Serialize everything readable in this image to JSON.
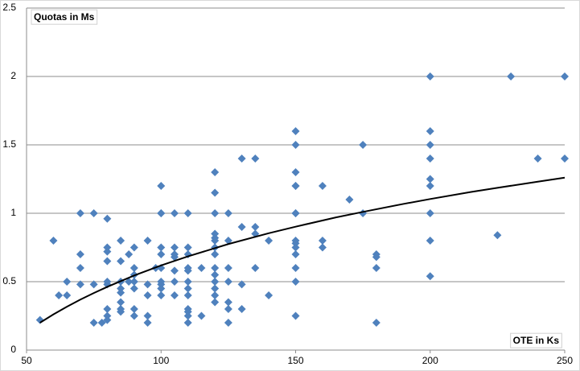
{
  "chart_data": {
    "type": "scatter",
    "ylabel": "Quotas in Ms",
    "xlabel": "OTE in Ks",
    "xlim": [
      50,
      250
    ],
    "xticks": [
      50,
      100,
      150,
      200,
      250
    ],
    "ylim": [
      0,
      2.5
    ],
    "yticks": [
      0,
      0.5,
      1,
      1.5,
      2,
      2.5
    ],
    "grid": true,
    "series": [
      {
        "color": "#4f81bd",
        "x": [
          55,
          60,
          62,
          65,
          65,
          70,
          70,
          70,
          70,
          75,
          75,
          75,
          78,
          80,
          80,
          80,
          80,
          80,
          80,
          80,
          80,
          80,
          85,
          85,
          85,
          85,
          85,
          85,
          85,
          85,
          88,
          88,
          90,
          90,
          90,
          90,
          90,
          90,
          90,
          95,
          95,
          95,
          95,
          95,
          98,
          100,
          100,
          100,
          100,
          100,
          100,
          100,
          100,
          100,
          100,
          105,
          105,
          105,
          105,
          105,
          105,
          105,
          110,
          110,
          110,
          110,
          110,
          110,
          110,
          110,
          110,
          110,
          110,
          110,
          115,
          115,
          120,
          120,
          120,
          120,
          120,
          120,
          120,
          120,
          120,
          120,
          120,
          120,
          120,
          120,
          125,
          125,
          125,
          125,
          125,
          125,
          125,
          130,
          130,
          130,
          130,
          135,
          135,
          135,
          135,
          140,
          140,
          150,
          150,
          150,
          150,
          150,
          150,
          150,
          150,
          150,
          150,
          150,
          150,
          150,
          150,
          160,
          160,
          160,
          170,
          175,
          175,
          180,
          180,
          180,
          180,
          200,
          200,
          200,
          200,
          200,
          200,
          200,
          200,
          200,
          225,
          230,
          240,
          250,
          250
        ],
        "values": [
          0.22,
          0.8,
          0.4,
          0.5,
          0.4,
          1.0,
          0.7,
          0.6,
          0.48,
          1.0,
          0.48,
          0.2,
          0.2,
          0.96,
          0.75,
          0.72,
          0.65,
          0.5,
          0.48,
          0.3,
          0.25,
          0.22,
          0.8,
          0.65,
          0.5,
          0.45,
          0.42,
          0.35,
          0.3,
          0.28,
          0.7,
          0.5,
          0.75,
          0.6,
          0.55,
          0.5,
          0.45,
          0.3,
          0.25,
          0.8,
          0.48,
          0.4,
          0.25,
          0.2,
          0.6,
          1.2,
          1.0,
          1.0,
          0.75,
          0.7,
          0.6,
          0.5,
          0.48,
          0.45,
          0.4,
          1.0,
          0.75,
          0.7,
          0.68,
          0.58,
          0.5,
          0.4,
          1.0,
          0.75,
          0.7,
          0.6,
          0.58,
          0.5,
          0.45,
          0.4,
          0.3,
          0.28,
          0.25,
          0.2,
          0.6,
          0.25,
          1.3,
          1.15,
          1.0,
          0.85,
          0.82,
          0.8,
          0.75,
          0.7,
          0.6,
          0.55,
          0.5,
          0.45,
          0.4,
          0.35,
          1.0,
          0.8,
          0.6,
          0.5,
          0.35,
          0.3,
          0.2,
          1.4,
          0.9,
          0.48,
          0.3,
          1.4,
          0.9,
          0.85,
          0.6,
          0.8,
          0.4,
          1.6,
          1.5,
          1.3,
          1.2,
          1.2,
          1.0,
          1.0,
          0.8,
          0.78,
          0.75,
          0.7,
          0.6,
          0.5,
          0.25,
          1.2,
          0.8,
          0.75,
          1.1,
          1.5,
          1.0,
          0.7,
          0.68,
          0.6,
          0.2,
          2.0,
          1.6,
          1.5,
          1.4,
          1.25,
          1.2,
          1.0,
          0.8,
          0.54,
          0.84,
          2.0,
          1.4,
          2.0,
          1.4
        ]
      }
    ],
    "trendline": {
      "color": "#000000",
      "x": [
        55,
        60,
        65,
        70,
        75,
        80,
        90,
        100,
        110,
        125,
        140,
        150,
        165,
        175,
        190,
        200,
        215,
        225,
        240,
        250
      ],
      "values": [
        0.2,
        0.261,
        0.317,
        0.369,
        0.417,
        0.462,
        0.545,
        0.619,
        0.685,
        0.775,
        0.854,
        0.902,
        0.97,
        1.01,
        1.068,
        1.104,
        1.155,
        1.186,
        1.231,
        1.26
      ]
    }
  }
}
